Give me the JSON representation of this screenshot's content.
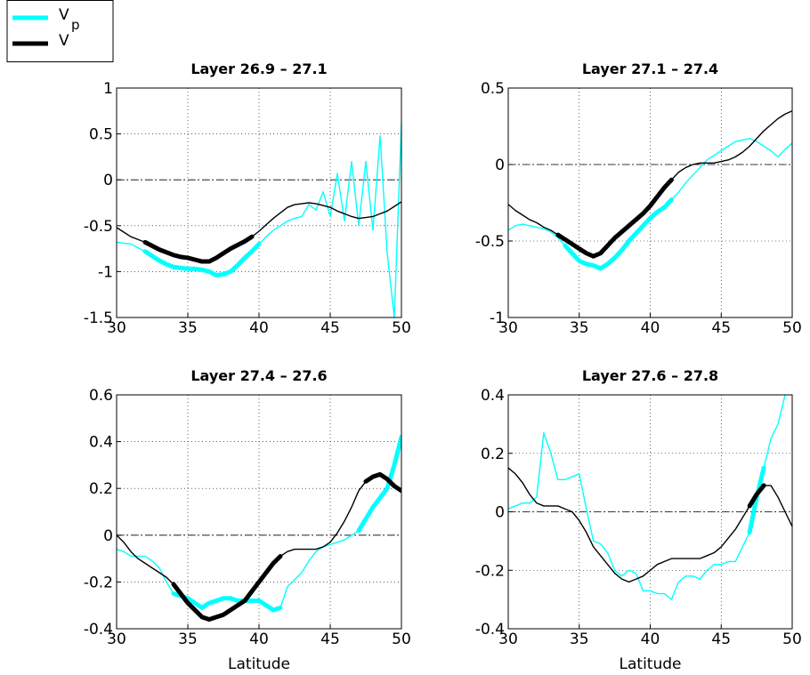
{
  "chart_data": [
    {
      "type": "line",
      "title": "Layer 26.9 – 27.1",
      "x": [
        30,
        30.5,
        31,
        31.5,
        32,
        32.5,
        33,
        33.5,
        34,
        34.5,
        35,
        35.5,
        36,
        36.5,
        37,
        37.5,
        38,
        38.5,
        39,
        39.5,
        40,
        40.5,
        41,
        41.5,
        42,
        42.5,
        43,
        43.5,
        44,
        44.5,
        45,
        45.5,
        46,
        46.5,
        47,
        47.5,
        48,
        48.5,
        49,
        49.5,
        50
      ],
      "xlim": [
        30,
        50
      ],
      "xticks": [
        30,
        35,
        40,
        45,
        50
      ],
      "ylim": [
        -1.5,
        1
      ],
      "yticks": [
        -1.5,
        -1,
        -0.5,
        0,
        0.5,
        1
      ],
      "grid": true,
      "zero_line": true,
      "series": [
        {
          "name": "V",
          "subscript": "p",
          "color": "#00ffff",
          "emphasis": [
            [
              32,
              40
            ]
          ],
          "values": [
            -0.68,
            -0.69,
            -0.7,
            -0.74,
            -0.78,
            -0.83,
            -0.88,
            -0.92,
            -0.95,
            -0.96,
            -0.97,
            -0.97,
            -0.98,
            -1.0,
            -1.04,
            -1.03,
            -1.0,
            -0.93,
            -0.85,
            -0.78,
            -0.7,
            -0.62,
            -0.55,
            -0.5,
            -0.45,
            -0.42,
            -0.4,
            -0.27,
            -0.33,
            -0.13,
            -0.4,
            0.07,
            -0.45,
            0.2,
            -0.5,
            0.2,
            -0.55,
            0.48,
            -0.8,
            -1.5,
            0.62
          ]
        },
        {
          "name": "V",
          "color": "#000000",
          "emphasis": [
            [
              32,
              39.5
            ]
          ],
          "values": [
            -0.52,
            -0.57,
            -0.62,
            -0.65,
            -0.68,
            -0.72,
            -0.76,
            -0.79,
            -0.82,
            -0.84,
            -0.85,
            -0.87,
            -0.89,
            -0.89,
            -0.85,
            -0.8,
            -0.75,
            -0.71,
            -0.67,
            -0.62,
            -0.56,
            -0.49,
            -0.42,
            -0.36,
            -0.3,
            -0.27,
            -0.26,
            -0.25,
            -0.26,
            -0.28,
            -0.3,
            -0.34,
            -0.37,
            -0.4,
            -0.42,
            -0.41,
            -0.4,
            -0.37,
            -0.34,
            -0.29,
            -0.24
          ]
        }
      ]
    },
    {
      "type": "line",
      "title": "Layer 27.1 – 27.4",
      "x": [
        30,
        30.5,
        31,
        31.5,
        32,
        32.5,
        33,
        33.5,
        34,
        34.5,
        35,
        35.5,
        36,
        36.5,
        37,
        37.5,
        38,
        38.5,
        39,
        39.5,
        40,
        40.5,
        41,
        41.5,
        42,
        42.5,
        43,
        43.5,
        44,
        44.5,
        45,
        45.5,
        46,
        46.5,
        47,
        47.5,
        48,
        48.5,
        49,
        49.5,
        50
      ],
      "xlim": [
        30,
        50
      ],
      "xticks": [
        30,
        35,
        40,
        45,
        50
      ],
      "ylim": [
        -1,
        0.5
      ],
      "yticks": [
        -1,
        -0.5,
        0,
        0.5
      ],
      "grid": true,
      "zero_line": true,
      "series": [
        {
          "name": "V",
          "subscript": "p",
          "color": "#00ffff",
          "emphasis": [
            [
              34,
              41.5
            ]
          ],
          "values": [
            -0.43,
            -0.4,
            -0.39,
            -0.4,
            -0.41,
            -0.42,
            -0.44,
            -0.48,
            -0.53,
            -0.58,
            -0.63,
            -0.65,
            -0.66,
            -0.68,
            -0.65,
            -0.61,
            -0.56,
            -0.5,
            -0.45,
            -0.4,
            -0.35,
            -0.31,
            -0.28,
            -0.23,
            -0.18,
            -0.12,
            -0.07,
            -0.02,
            0.03,
            0.06,
            0.09,
            0.12,
            0.15,
            0.16,
            0.17,
            0.15,
            0.12,
            0.09,
            0.05,
            0.1,
            0.14
          ]
        },
        {
          "name": "V",
          "color": "#000000",
          "emphasis": [
            [
              33.5,
              41.5
            ]
          ],
          "values": [
            -0.26,
            -0.3,
            -0.33,
            -0.36,
            -0.38,
            -0.41,
            -0.43,
            -0.46,
            -0.49,
            -0.52,
            -0.55,
            -0.58,
            -0.6,
            -0.58,
            -0.53,
            -0.48,
            -0.44,
            -0.4,
            -0.36,
            -0.32,
            -0.27,
            -0.21,
            -0.15,
            -0.1,
            -0.05,
            -0.02,
            0.0,
            0.01,
            0.01,
            0.01,
            0.02,
            0.03,
            0.05,
            0.08,
            0.12,
            0.17,
            0.22,
            0.26,
            0.3,
            0.33,
            0.35
          ]
        }
      ]
    },
    {
      "type": "line",
      "title": "Layer 27.4 – 27.6",
      "xlabel": "Latitude",
      "x": [
        30,
        30.5,
        31,
        31.5,
        32,
        32.5,
        33,
        33.5,
        34,
        34.5,
        35,
        35.5,
        36,
        36.5,
        37,
        37.5,
        38,
        38.5,
        39,
        39.5,
        40,
        40.5,
        41,
        41.5,
        42,
        42.5,
        43,
        43.5,
        44,
        44.5,
        45,
        45.5,
        46,
        46.5,
        47,
        47.5,
        48,
        48.5,
        49,
        49.5,
        50
      ],
      "xlim": [
        30,
        50
      ],
      "xticks": [
        30,
        35,
        40,
        45,
        50
      ],
      "ylim": [
        -0.4,
        0.6
      ],
      "yticks": [
        -0.4,
        -0.2,
        0,
        0.2,
        0.4,
        0.6
      ],
      "grid": true,
      "zero_line": true,
      "series": [
        {
          "name": "V",
          "subscript": "p",
          "color": "#00ffff",
          "emphasis": [
            [
              34,
              41.5
            ],
            [
              47,
              50
            ]
          ],
          "values": [
            -0.06,
            -0.07,
            -0.09,
            -0.09,
            -0.09,
            -0.11,
            -0.14,
            -0.2,
            -0.25,
            -0.26,
            -0.27,
            -0.29,
            -0.31,
            -0.29,
            -0.28,
            -0.27,
            -0.27,
            -0.28,
            -0.28,
            -0.28,
            -0.28,
            -0.3,
            -0.32,
            -0.31,
            -0.22,
            -0.19,
            -0.16,
            -0.11,
            -0.07,
            -0.05,
            -0.04,
            -0.03,
            -0.02,
            0.0,
            0.02,
            0.07,
            0.12,
            0.16,
            0.2,
            0.3,
            0.42
          ]
        },
        {
          "name": "V",
          "color": "#000000",
          "emphasis": [
            [
              34,
              41.5
            ],
            [
              47.5,
              50
            ]
          ],
          "values": [
            0.0,
            -0.03,
            -0.07,
            -0.1,
            -0.12,
            -0.14,
            -0.16,
            -0.18,
            -0.21,
            -0.25,
            -0.29,
            -0.32,
            -0.35,
            -0.36,
            -0.35,
            -0.34,
            -0.32,
            -0.3,
            -0.28,
            -0.24,
            -0.2,
            -0.16,
            -0.12,
            -0.09,
            -0.07,
            -0.06,
            -0.06,
            -0.06,
            -0.06,
            -0.05,
            -0.03,
            0.01,
            0.06,
            0.12,
            0.19,
            0.23,
            0.25,
            0.26,
            0.24,
            0.21,
            0.19
          ]
        }
      ]
    },
    {
      "type": "line",
      "title": "Layer 27.6 – 27.8",
      "xlabel": "Latitude",
      "x": [
        30,
        30.5,
        31,
        31.5,
        32,
        32.5,
        33,
        33.5,
        34,
        34.5,
        35,
        35.5,
        36,
        36.5,
        37,
        37.5,
        38,
        38.5,
        39,
        39.5,
        40,
        40.5,
        41,
        41.5,
        42,
        42.5,
        43,
        43.5,
        44,
        44.5,
        45,
        45.5,
        46,
        46.5,
        47,
        47.5,
        48,
        48.5,
        49,
        49.5,
        50
      ],
      "xlim": [
        30,
        50
      ],
      "xticks": [
        30,
        35,
        40,
        45,
        50
      ],
      "ylim": [
        -0.4,
        0.4
      ],
      "yticks": [
        -0.4,
        -0.2,
        0,
        0.2,
        0.4
      ],
      "grid": true,
      "zero_line": true,
      "series": [
        {
          "name": "V",
          "subscript": "p",
          "color": "#00ffff",
          "emphasis": [
            [
              47,
              48
            ]
          ],
          "values": [
            0.01,
            0.02,
            0.03,
            0.03,
            0.05,
            0.27,
            0.2,
            0.11,
            0.11,
            0.12,
            0.13,
            0.01,
            -0.1,
            -0.11,
            -0.14,
            -0.2,
            -0.22,
            -0.2,
            -0.21,
            -0.27,
            -0.27,
            -0.28,
            -0.28,
            -0.3,
            -0.24,
            -0.22,
            -0.22,
            -0.23,
            -0.2,
            -0.18,
            -0.18,
            -0.17,
            -0.17,
            -0.12,
            -0.07,
            0.05,
            0.15,
            0.25,
            0.3,
            0.4,
            null
          ]
        },
        {
          "name": "V",
          "color": "#000000",
          "emphasis": [
            [
              47,
              48
            ]
          ],
          "values": [
            0.15,
            0.13,
            0.1,
            0.06,
            0.03,
            0.02,
            0.02,
            0.02,
            0.01,
            0.0,
            -0.03,
            -0.07,
            -0.12,
            -0.15,
            -0.18,
            -0.21,
            -0.23,
            -0.24,
            -0.23,
            -0.22,
            -0.2,
            -0.18,
            -0.17,
            -0.16,
            -0.16,
            -0.16,
            -0.16,
            -0.16,
            -0.15,
            -0.14,
            -0.12,
            -0.09,
            -0.06,
            -0.02,
            0.02,
            0.06,
            0.09,
            0.09,
            0.05,
            0.0,
            -0.05
          ]
        }
      ]
    }
  ]
}
